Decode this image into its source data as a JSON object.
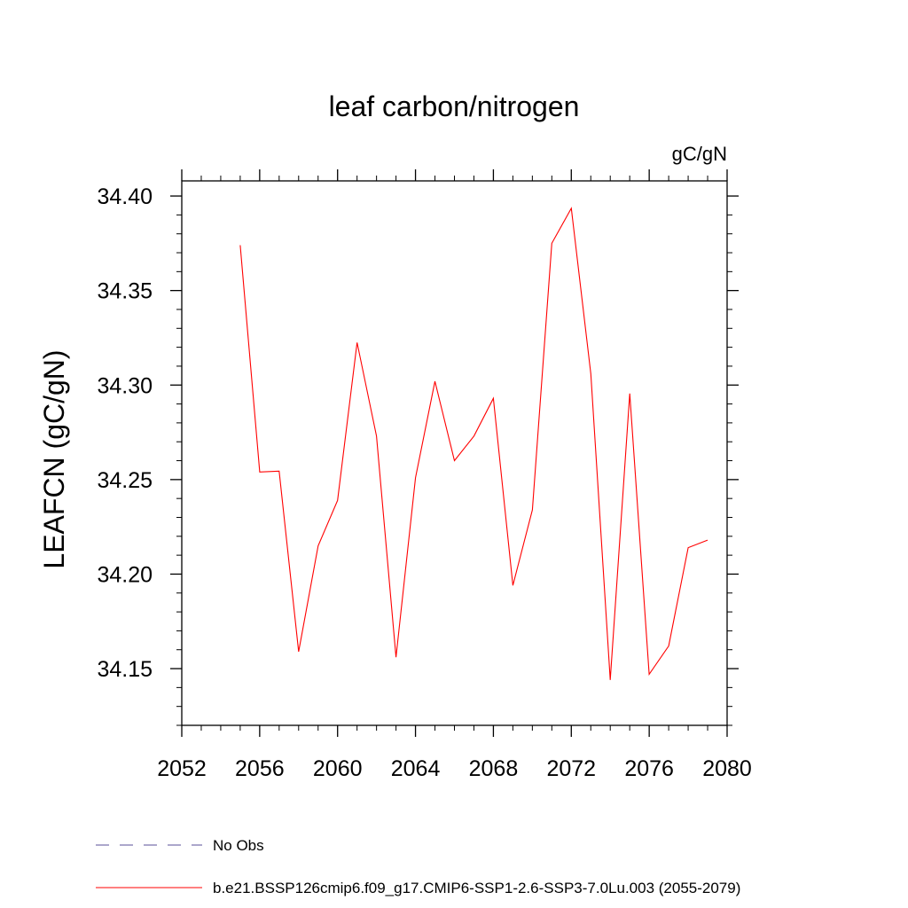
{
  "chart_data": {
    "type": "line",
    "title": "leaf carbon/nitrogen",
    "units_label": "gC/gN",
    "ylabel": "LEAFCN  (gC/gN)",
    "xlabel": "",
    "xlim": [
      2052,
      2080
    ],
    "ylim": [
      34.12,
      34.408
    ],
    "x_ticks": [
      2052,
      2056,
      2060,
      2064,
      2068,
      2072,
      2076,
      2080
    ],
    "x_tick_labels": [
      "2052",
      "2056",
      "2060",
      "2064",
      "2068",
      "2072",
      "2076",
      "2080"
    ],
    "y_ticks": [
      34.15,
      34.2,
      34.25,
      34.3,
      34.35,
      34.4
    ],
    "y_tick_labels": [
      "34.15",
      "34.20",
      "34.25",
      "34.30",
      "34.35",
      "34.40"
    ],
    "grid": false,
    "legend_position": "bottom-left",
    "series": [
      {
        "name": "b.e21.BSSP126cmip6.f09_g17.CMIP6-SSP1-2.6-SSP3-7.0Lu.003 (2055-2079)",
        "color": "#ff0000",
        "style": "solid",
        "x": [
          2055,
          2056,
          2057,
          2058,
          2059,
          2060,
          2061,
          2062,
          2063,
          2064,
          2065,
          2066,
          2067,
          2068,
          2069,
          2070,
          2071,
          2072,
          2073,
          2074,
          2075,
          2076,
          2077,
          2078,
          2079
        ],
        "y": [
          34.374,
          34.254,
          34.2545,
          34.159,
          34.215,
          34.239,
          34.3225,
          34.273,
          34.156,
          34.251,
          34.302,
          34.26,
          34.273,
          34.293,
          34.194,
          34.234,
          34.375,
          34.3935,
          34.306,
          34.144,
          34.2955,
          34.147,
          34.162,
          34.214,
          34.218
        ]
      }
    ],
    "legend": [
      {
        "label": "No Obs",
        "color": "#5a4f9a",
        "style": "dashed"
      },
      {
        "label": "b.e21.BSSP126cmip6.f09_g17.CMIP6-SSP1-2.6-SSP3-7.0Lu.003 (2055-2079)",
        "color": "#ff0000",
        "style": "solid"
      }
    ]
  }
}
